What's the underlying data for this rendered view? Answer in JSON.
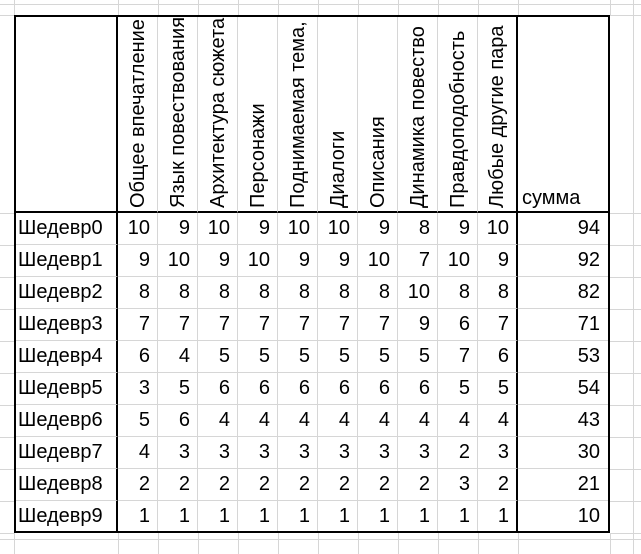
{
  "sheet": {
    "criteria_headers": [
      "Общее впечатление",
      "Язык повествования",
      "Архитектура сюжета",
      "Персонажи",
      "Поднимаемая тема,",
      "Диалоги",
      "Описания",
      "Динамика повество",
      "Правдоподобность",
      "Любые другие пара"
    ],
    "sum_header": "сумма",
    "rows": [
      {
        "label": "Шедевр0",
        "values": [
          10,
          9,
          10,
          9,
          10,
          10,
          9,
          8,
          9,
          10
        ],
        "sum": 94
      },
      {
        "label": "Шедевр1",
        "values": [
          9,
          10,
          9,
          10,
          9,
          9,
          10,
          7,
          10,
          9
        ],
        "sum": 92
      },
      {
        "label": "Шедевр2",
        "values": [
          8,
          8,
          8,
          8,
          8,
          8,
          8,
          10,
          8,
          8
        ],
        "sum": 82
      },
      {
        "label": "Шедевр3",
        "values": [
          7,
          7,
          7,
          7,
          7,
          7,
          7,
          9,
          6,
          7
        ],
        "sum": 71
      },
      {
        "label": "Шедевр4",
        "values": [
          6,
          4,
          5,
          5,
          5,
          5,
          5,
          5,
          7,
          6
        ],
        "sum": 53
      },
      {
        "label": "Шедевр5",
        "values": [
          3,
          5,
          6,
          6,
          6,
          6,
          6,
          6,
          5,
          5
        ],
        "sum": 54
      },
      {
        "label": "Шедевр6",
        "values": [
          5,
          6,
          4,
          4,
          4,
          4,
          4,
          4,
          4,
          4
        ],
        "sum": 43
      },
      {
        "label": "Шедевр7",
        "values": [
          4,
          3,
          3,
          3,
          3,
          3,
          3,
          3,
          2,
          3
        ],
        "sum": 30
      },
      {
        "label": "Шедевр8",
        "values": [
          2,
          2,
          2,
          2,
          2,
          2,
          2,
          2,
          3,
          2
        ],
        "sum": 21
      },
      {
        "label": "Шедевр9",
        "values": [
          1,
          1,
          1,
          1,
          1,
          1,
          1,
          1,
          1,
          1
        ],
        "sum": 10
      }
    ],
    "colors": {
      "background": "#ffffff",
      "grid_line": "#d6d6d6",
      "table_border": "#000000",
      "text": "#000000"
    }
  }
}
